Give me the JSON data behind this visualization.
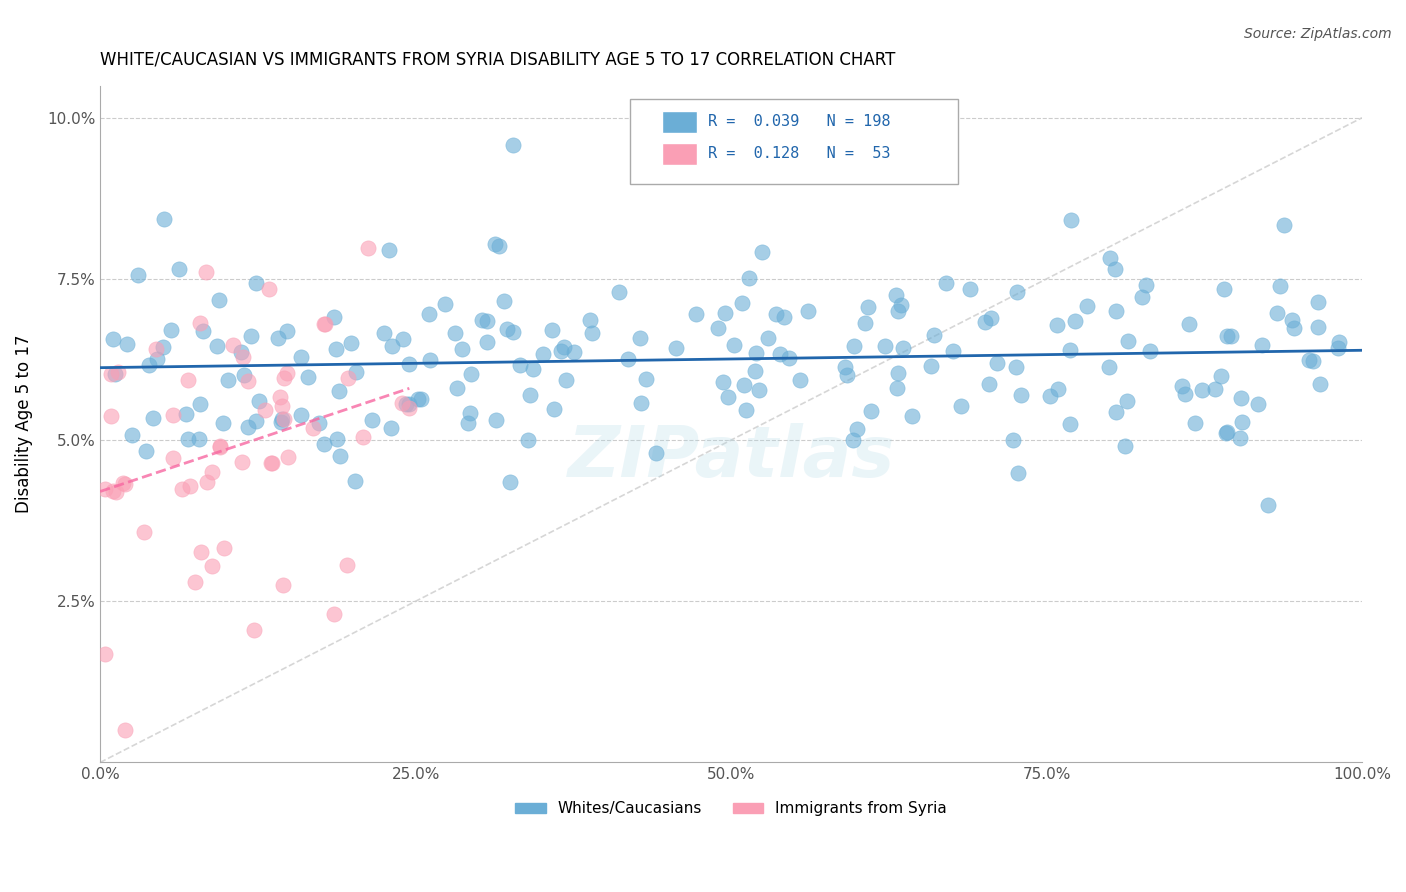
{
  "title": "WHITE/CAUCASIAN VS IMMIGRANTS FROM SYRIA DISABILITY AGE 5 TO 17 CORRELATION CHART",
  "source": "Source: ZipAtlas.com",
  "xlabel": "",
  "ylabel": "Disability Age 5 to 17",
  "xlim": [
    0.0,
    100.0
  ],
  "ylim": [
    0.0,
    10.5
  ],
  "yticks": [
    0.0,
    2.5,
    5.0,
    7.5,
    10.0
  ],
  "ytick_labels": [
    "",
    "2.5%",
    "5.0%",
    "7.5%",
    "10.0%"
  ],
  "xticks": [
    0,
    25,
    50,
    75,
    100
  ],
  "xtick_labels": [
    "0.0%",
    "25.0%",
    "50.0%",
    "75.0%",
    "100.0%"
  ],
  "blue_R": 0.039,
  "blue_N": 198,
  "pink_R": 0.128,
  "pink_N": 53,
  "blue_color": "#6baed6",
  "pink_color": "#fa9fb5",
  "blue_line_color": "#2166ac",
  "pink_line_color": "#f768a1",
  "watermark": "ZIPatlas"
}
